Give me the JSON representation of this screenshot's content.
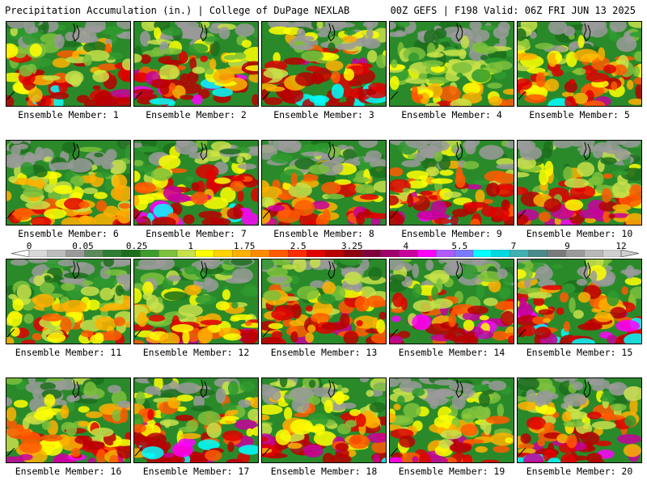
{
  "header": {
    "left_text": "Precipitation Accumulation (in.) | College of DuPage NEXLAB",
    "right_text": "00Z GEFS | F198 Valid: 06Z FRI JUN 13 2025"
  },
  "panels": [
    {
      "label": "Ensemble Member: 1"
    },
    {
      "label": "Ensemble Member: 2"
    },
    {
      "label": "Ensemble Member: 3"
    },
    {
      "label": "Ensemble Member: 4"
    },
    {
      "label": "Ensemble Member: 5"
    },
    {
      "label": "Ensemble Member: 6"
    },
    {
      "label": "Ensemble Member: 7"
    },
    {
      "label": "Ensemble Member: 8"
    },
    {
      "label": "Ensemble Member: 9"
    },
    {
      "label": "Ensemble Member: 10"
    },
    {
      "label": "Ensemble Member: 11"
    },
    {
      "label": "Ensemble Member: 12"
    },
    {
      "label": "Ensemble Member: 13"
    },
    {
      "label": "Ensemble Member: 14"
    },
    {
      "label": "Ensemble Member: 15"
    },
    {
      "label": "Ensemble Member: 16"
    },
    {
      "label": "Ensemble Member: 17"
    },
    {
      "label": "Ensemble Member: 18"
    },
    {
      "label": "Ensemble Member: 19"
    },
    {
      "label": "Ensemble Member: 20"
    }
  ],
  "colorbar": {
    "labels": [
      "0",
      "0.05",
      "0.25",
      "1",
      "1.75",
      "2.5",
      "3.25",
      "4",
      "5.5",
      "7",
      "9",
      "12"
    ],
    "colors": [
      "#d9d9d9",
      "#bdbdbd",
      "#9a9a9a",
      "#5a8a5a",
      "#2f7d32",
      "#1c6e1c",
      "#3c9c2c",
      "#7cc03c",
      "#c8e04a",
      "#ffff00",
      "#ffd200",
      "#ffb000",
      "#ff8c00",
      "#ff5a00",
      "#ff2a00",
      "#e00000",
      "#b80000",
      "#8c0010",
      "#80003c",
      "#a0006c",
      "#c8009c",
      "#ff00ff",
      "#b05aff",
      "#7a7aff",
      "#00ffff",
      "#00d8e0",
      "#40b0b0",
      "#4a8a8a",
      "#7a7a7a",
      "#9a9a9a",
      "#b8b8b8",
      "#d0d0d0"
    ]
  }
}
